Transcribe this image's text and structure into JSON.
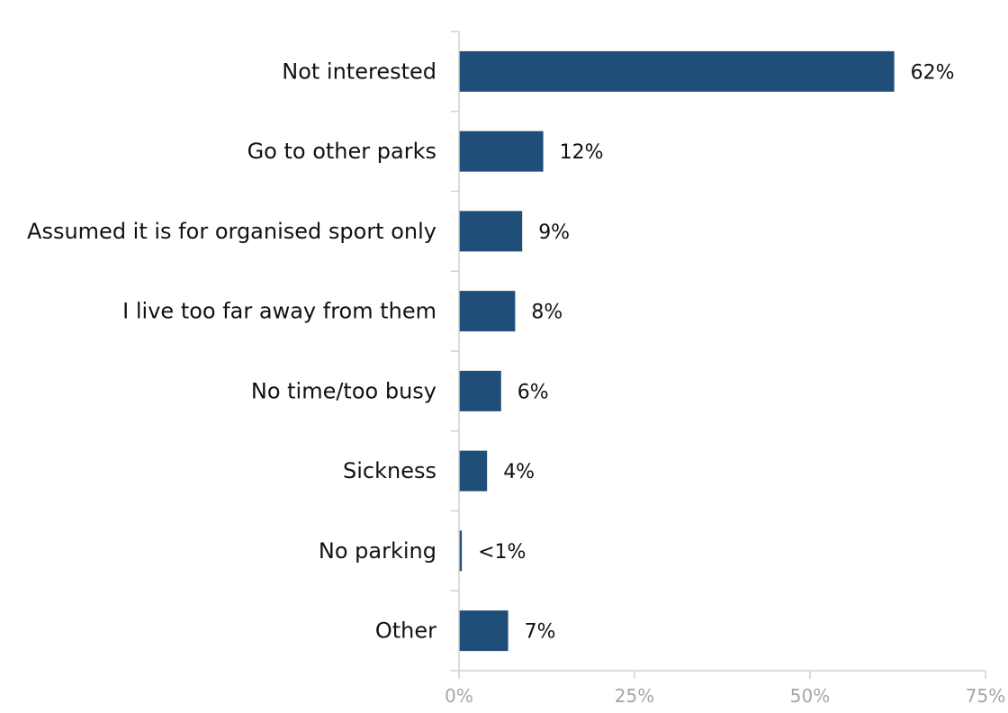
{
  "chart_data": {
    "type": "bar",
    "orientation": "horizontal",
    "categories": [
      "Not interested",
      "Go to other parks",
      "Assumed it is for organised sport only",
      "I live too far away from them",
      "No time/too busy",
      "Sickness",
      "No parking",
      "Other"
    ],
    "values": [
      62,
      12,
      9,
      8,
      6,
      4,
      0.4,
      7
    ],
    "data_labels": [
      "62%",
      "12%",
      "9%",
      "8%",
      "6%",
      "4%",
      "<1%",
      "7%"
    ],
    "xlim": [
      0,
      75
    ],
    "x_ticks": [
      0,
      25,
      50,
      75
    ],
    "x_tick_labels": [
      "0%",
      "25%",
      "50%",
      "75%"
    ],
    "grid": false,
    "legend": "none",
    "bar_color": "#1f4e79",
    "axis_color": "#d0d0d0",
    "tick_label_color": "#a6a6a6"
  }
}
